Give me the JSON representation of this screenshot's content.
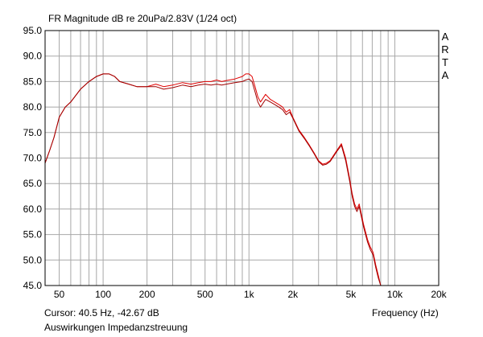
{
  "header": {
    "title": "FR Magnitude dB re 20uPa/2.83V (1/24 oct)"
  },
  "watermark": {
    "letters": [
      "A",
      "R",
      "T",
      "A"
    ]
  },
  "footer": {
    "cursor": "Cursor: 40.5 Hz, -42.67 dB",
    "note": "Auswirkungen Impedanzstreuung",
    "xlabel": "Frequency (Hz)"
  },
  "chart_data": {
    "type": "line",
    "title": "FR Magnitude dB re 20uPa/2.83V (1/24 oct)",
    "xlabel": "Frequency (Hz)",
    "ylabel": "",
    "x_scale": "log",
    "xlim": [
      40,
      20000
    ],
    "ylim": [
      45,
      95
    ],
    "grid": true,
    "legend": "none",
    "x_ticks": [
      {
        "v": 50,
        "label": "50"
      },
      {
        "v": 100,
        "label": "100"
      },
      {
        "v": 200,
        "label": "200"
      },
      {
        "v": 500,
        "label": "500"
      },
      {
        "v": 1000,
        "label": "1k"
      },
      {
        "v": 2000,
        "label": "2k"
      },
      {
        "v": 5000,
        "label": "5k"
      },
      {
        "v": 10000,
        "label": "10k"
      },
      {
        "v": 20000,
        "label": "20k"
      }
    ],
    "y_ticks": [
      {
        "v": 95,
        "label": "95.0"
      },
      {
        "v": 90,
        "label": "90.0"
      },
      {
        "v": 85,
        "label": "85.0"
      },
      {
        "v": 80,
        "label": "80.0"
      },
      {
        "v": 75,
        "label": "75.0"
      },
      {
        "v": 70,
        "label": "70.0"
      },
      {
        "v": 65,
        "label": "65.0"
      },
      {
        "v": 60,
        "label": "60.0"
      },
      {
        "v": 55,
        "label": "55.0"
      },
      {
        "v": 50,
        "label": "50.0"
      },
      {
        "v": 45,
        "label": "45.0"
      }
    ],
    "series": [
      {
        "color": "#e00000",
        "x": [
          40,
          43,
          46,
          50,
          55,
          60,
          70,
          80,
          90,
          100,
          110,
          120,
          130,
          150,
          170,
          200,
          230,
          260,
          300,
          350,
          400,
          450,
          500,
          550,
          600,
          650,
          700,
          800,
          900,
          950,
          1000,
          1050,
          1100,
          1150,
          1200,
          1300,
          1400,
          1500,
          1600,
          1700,
          1800,
          1900,
          2000,
          2200,
          2400,
          2600,
          2800,
          3000,
          3200,
          3400,
          3600,
          3800,
          4000,
          4300,
          4600,
          4900,
          5100,
          5300,
          5500,
          5700,
          5900,
          6100,
          6300,
          6500,
          6800,
          7100,
          7400,
          7700,
          8000
        ],
        "y": [
          69.0,
          71.5,
          74.0,
          78.0,
          80.0,
          81.0,
          83.5,
          85.0,
          86.0,
          86.5,
          86.5,
          86.0,
          85.0,
          84.5,
          84.0,
          84.0,
          84.5,
          84.0,
          84.3,
          84.8,
          84.5,
          84.8,
          85.0,
          85.0,
          85.3,
          85.0,
          85.2,
          85.5,
          86.0,
          86.5,
          86.5,
          86.0,
          84.0,
          82.0,
          81.0,
          82.5,
          81.5,
          81.0,
          80.5,
          80.0,
          79.0,
          79.5,
          78.0,
          75.5,
          74.0,
          72.5,
          71.0,
          69.5,
          68.8,
          69.0,
          69.5,
          70.5,
          71.5,
          72.8,
          70.0,
          66.0,
          63.0,
          61.0,
          60.0,
          61.0,
          59.0,
          57.0,
          55.5,
          54.0,
          52.5,
          51.5,
          49.0,
          47.0,
          45.0
        ]
      },
      {
        "color": "#a00000",
        "x": [
          40,
          43,
          46,
          50,
          55,
          60,
          70,
          80,
          90,
          100,
          110,
          120,
          130,
          150,
          170,
          200,
          230,
          260,
          300,
          350,
          400,
          450,
          500,
          550,
          600,
          650,
          700,
          800,
          900,
          950,
          1000,
          1050,
          1100,
          1150,
          1200,
          1300,
          1400,
          1500,
          1600,
          1700,
          1800,
          1900,
          2000,
          2200,
          2400,
          2600,
          2800,
          3000,
          3200,
          3400,
          3600,
          3800,
          4000,
          4300,
          4600,
          4900,
          5100,
          5300,
          5500,
          5700,
          5900,
          6100,
          6300,
          6500,
          6800,
          7100,
          7400,
          7700,
          8000
        ],
        "y": [
          69.0,
          71.5,
          74.0,
          78.0,
          80.0,
          81.0,
          83.5,
          85.0,
          86.0,
          86.5,
          86.5,
          86.0,
          85.0,
          84.5,
          84.0,
          84.0,
          84.0,
          83.5,
          83.8,
          84.3,
          84.0,
          84.3,
          84.5,
          84.3,
          84.5,
          84.3,
          84.5,
          84.8,
          85.0,
          85.3,
          85.5,
          85.0,
          83.0,
          81.0,
          80.0,
          81.5,
          81.0,
          80.5,
          80.0,
          79.5,
          78.5,
          79.0,
          77.8,
          75.3,
          73.8,
          72.3,
          70.8,
          69.3,
          68.6,
          68.8,
          69.3,
          70.3,
          71.3,
          72.5,
          69.5,
          65.5,
          62.5,
          60.5,
          59.5,
          60.5,
          58.5,
          56.5,
          55.0,
          53.5,
          52.0,
          51.0,
          48.5,
          46.5,
          45.0
        ]
      }
    ]
  }
}
